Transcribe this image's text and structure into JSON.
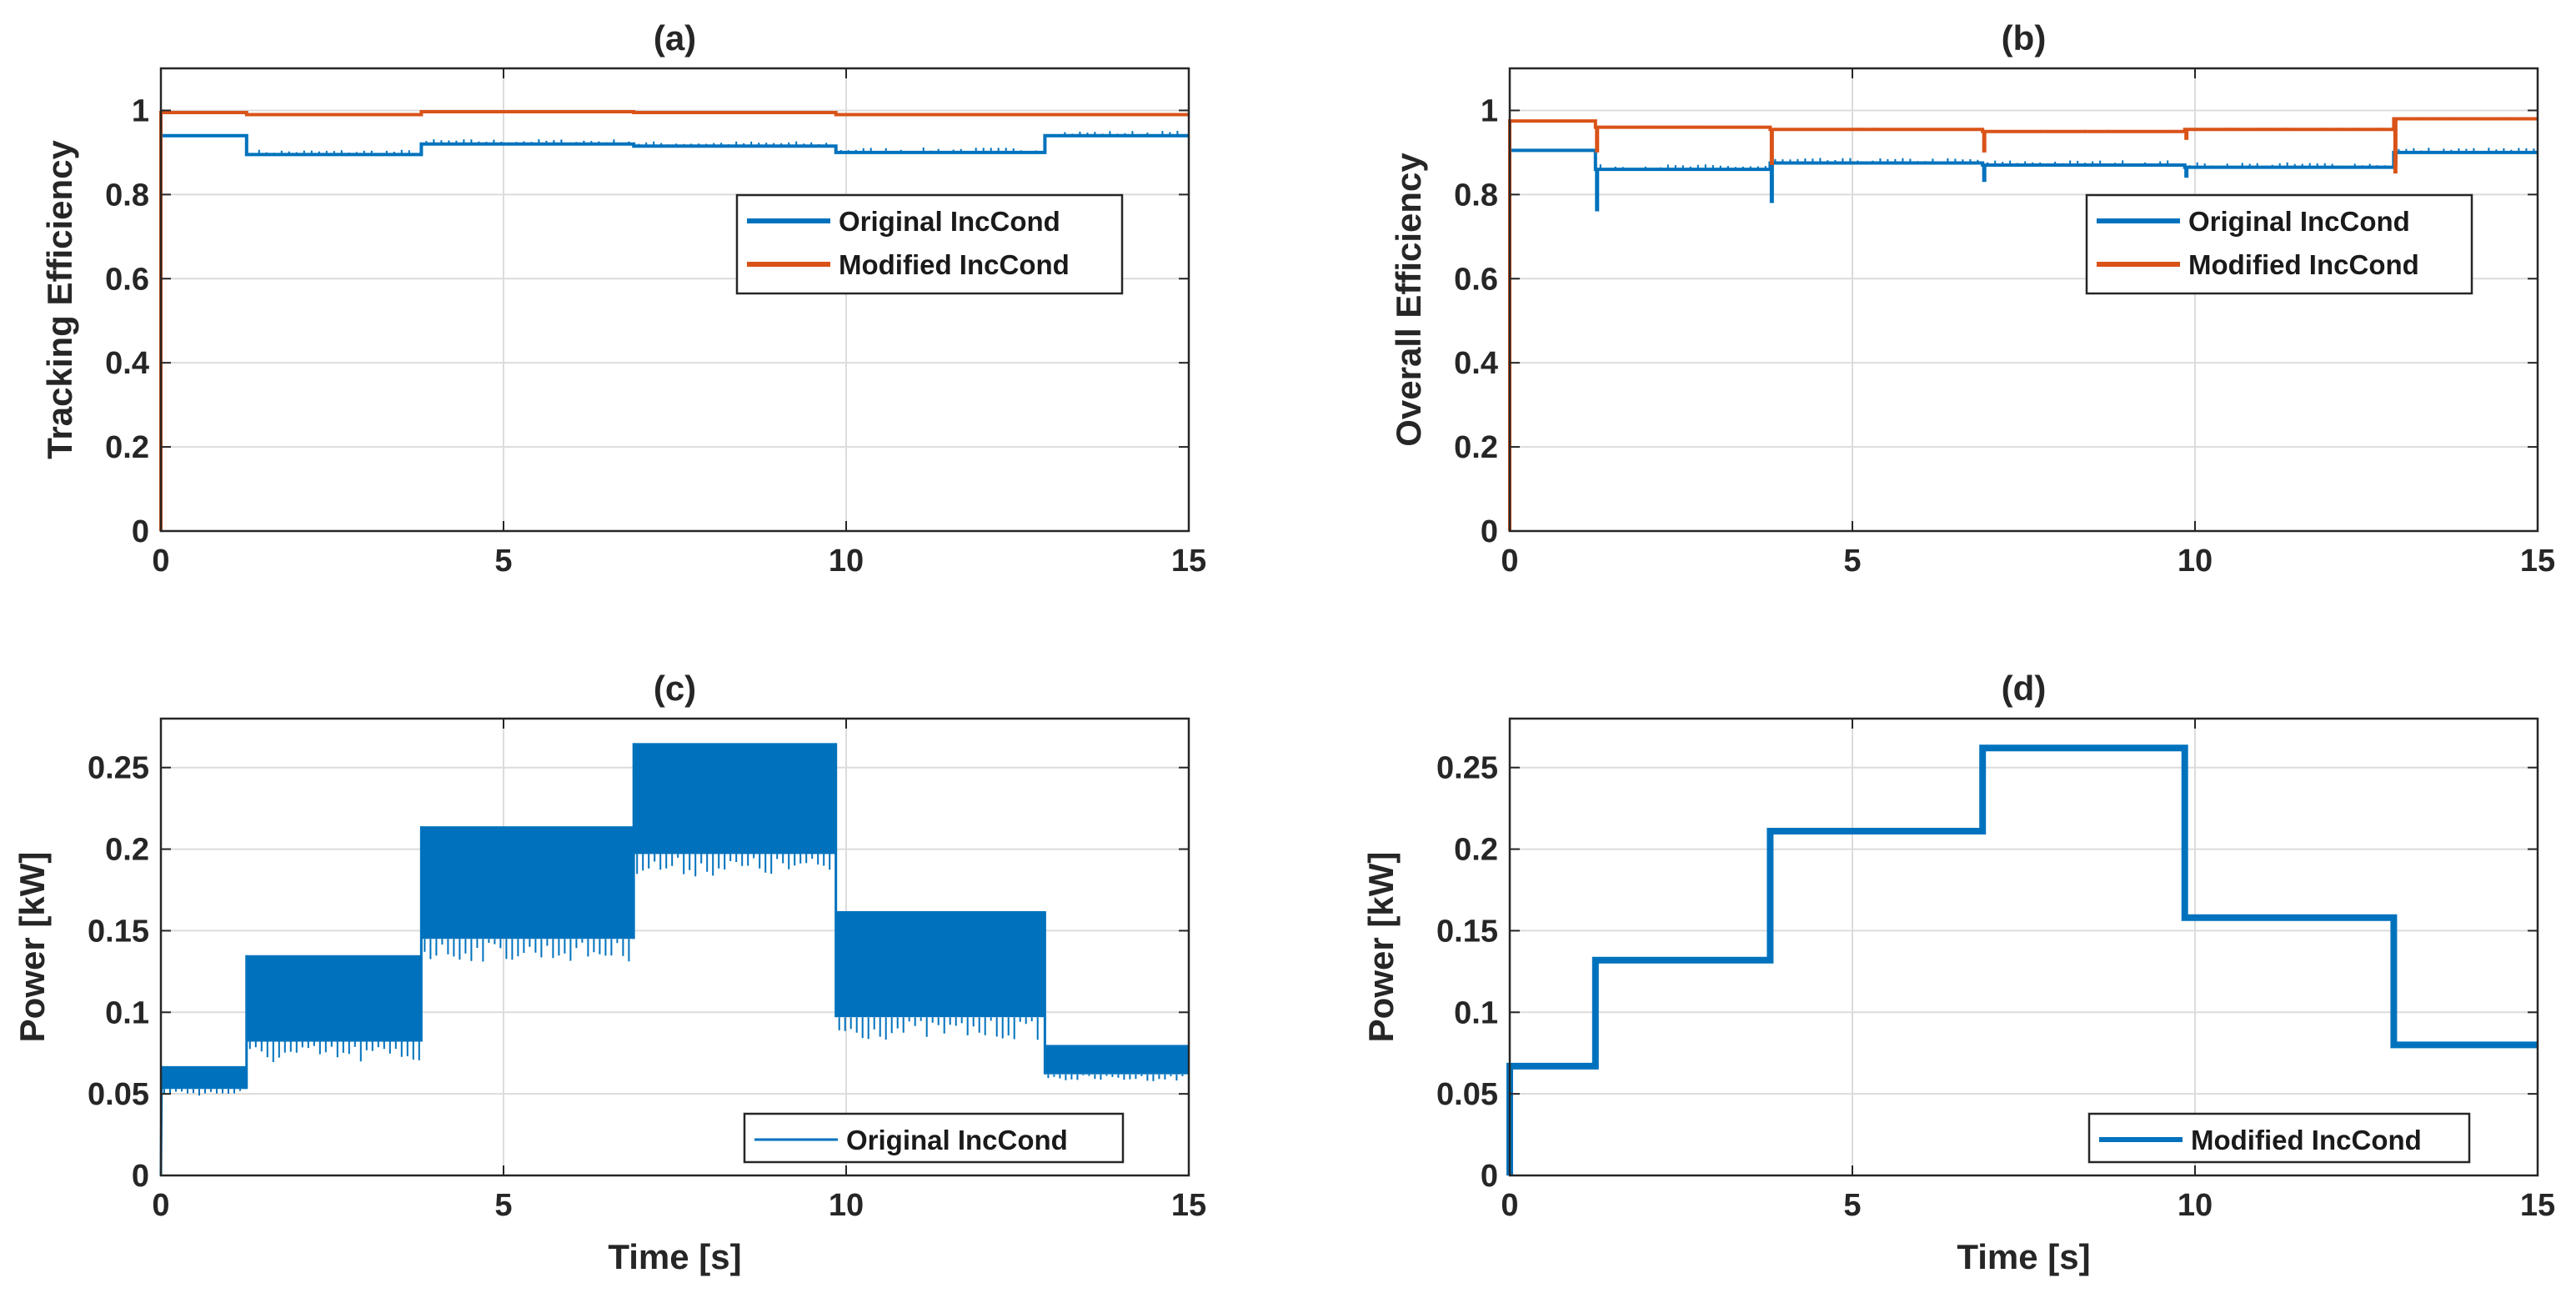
{
  "chart_data": [
    {
      "id": "a",
      "type": "line",
      "title": "(a)",
      "xlabel": "",
      "ylabel": "Tracking Efficiency",
      "xlim": [
        0,
        15
      ],
      "ylim": [
        0,
        1.1
      ],
      "xticks": [
        0,
        5,
        10,
        15
      ],
      "yticks": [
        0,
        0.2,
        0.4,
        0.6,
        0.8,
        1
      ],
      "xtick_labels": [
        "0",
        "5",
        "10",
        "15"
      ],
      "ytick_labels": [
        "0",
        "0.2",
        "0.4",
        "0.6",
        "0.8",
        "1"
      ],
      "grid": true,
      "legend_position": "center-right",
      "series": [
        {
          "name": "Original IncCond",
          "color": "#0072BD",
          "steps": [
            {
              "t0": 0,
              "t1": 1.25,
              "v": 0.94
            },
            {
              "t0": 1.25,
              "t1": 3.8,
              "v": 0.895
            },
            {
              "t0": 3.8,
              "t1": 6.9,
              "v": 0.92
            },
            {
              "t0": 6.9,
              "t1": 9.85,
              "v": 0.915
            },
            {
              "t0": 9.85,
              "t1": 12.9,
              "v": 0.9
            },
            {
              "t0": 12.9,
              "t1": 15,
              "v": 0.94
            }
          ]
        },
        {
          "name": "Modified IncCond",
          "color": "#D95319",
          "steps": [
            {
              "t0": 0,
              "t1": 1.25,
              "v": 0.995
            },
            {
              "t0": 1.25,
              "t1": 3.8,
              "v": 0.99
            },
            {
              "t0": 3.8,
              "t1": 6.9,
              "v": 0.997
            },
            {
              "t0": 6.9,
              "t1": 9.85,
              "v": 0.995
            },
            {
              "t0": 9.85,
              "t1": 12.9,
              "v": 0.99
            },
            {
              "t0": 12.9,
              "t1": 15,
              "v": 0.99
            }
          ]
        }
      ]
    },
    {
      "id": "b",
      "type": "line",
      "title": "(b)",
      "xlabel": "",
      "ylabel": "Overall Efficiency",
      "xlim": [
        0,
        15
      ],
      "ylim": [
        0,
        1.1
      ],
      "xticks": [
        0,
        5,
        10,
        15
      ],
      "yticks": [
        0,
        0.2,
        0.4,
        0.6,
        0.8,
        1
      ],
      "xtick_labels": [
        "0",
        "5",
        "10",
        "15"
      ],
      "ytick_labels": [
        "0",
        "0.2",
        "0.4",
        "0.6",
        "0.8",
        "1"
      ],
      "grid": true,
      "legend_position": "center-right",
      "series": [
        {
          "name": "Original IncCond",
          "color": "#0072BD",
          "steps": [
            {
              "t0": 0,
              "t1": 1.25,
              "v": 0.905
            },
            {
              "t0": 1.25,
              "t1": 3.8,
              "v": 0.86
            },
            {
              "t0": 3.8,
              "t1": 6.9,
              "v": 0.875
            },
            {
              "t0": 6.9,
              "t1": 9.85,
              "v": 0.87
            },
            {
              "t0": 9.85,
              "t1": 12.9,
              "v": 0.865
            },
            {
              "t0": 12.9,
              "t1": 15,
              "v": 0.9
            }
          ],
          "dips": [
            {
              "t": 1.25,
              "v": 0.76
            },
            {
              "t": 3.8,
              "v": 0.78
            },
            {
              "t": 6.9,
              "v": 0.83
            },
            {
              "t": 9.85,
              "v": 0.84
            },
            {
              "t": 12.9,
              "v": 0.87
            }
          ]
        },
        {
          "name": "Modified IncCond",
          "color": "#D95319",
          "steps": [
            {
              "t0": 0,
              "t1": 1.25,
              "v": 0.975
            },
            {
              "t0": 1.25,
              "t1": 3.8,
              "v": 0.96
            },
            {
              "t0": 3.8,
              "t1": 6.9,
              "v": 0.955
            },
            {
              "t0": 6.9,
              "t1": 9.85,
              "v": 0.95
            },
            {
              "t0": 9.85,
              "t1": 12.9,
              "v": 0.955
            },
            {
              "t0": 12.9,
              "t1": 15,
              "v": 0.98
            }
          ],
          "dips": [
            {
              "t": 1.25,
              "v": 0.9
            },
            {
              "t": 3.8,
              "v": 0.87
            },
            {
              "t": 6.9,
              "v": 0.9
            },
            {
              "t": 9.85,
              "v": 0.93
            },
            {
              "t": 12.9,
              "v": 0.85
            }
          ]
        }
      ]
    },
    {
      "id": "c",
      "type": "line",
      "title": "(c)",
      "xlabel": "Time [s]",
      "ylabel": "Power [kW]",
      "xlim": [
        0,
        15
      ],
      "ylim": [
        0,
        0.28
      ],
      "xticks": [
        0,
        5,
        10,
        15
      ],
      "yticks": [
        0,
        0.05,
        0.1,
        0.15,
        0.2,
        0.25
      ],
      "xtick_labels": [
        "0",
        "5",
        "10",
        "15"
      ],
      "ytick_labels": [
        "0",
        "0.05",
        "0.1",
        "0.15",
        "0.2",
        "0.25"
      ],
      "grid": true,
      "legend_position": "bottom-right",
      "series": [
        {
          "name": "Original IncCond",
          "color": "#0072BD",
          "bands": [
            {
              "t0": 0,
              "t1": 1.25,
              "low": 0.053,
              "high": 0.067
            },
            {
              "t0": 1.25,
              "t1": 3.8,
              "low": 0.082,
              "high": 0.135
            },
            {
              "t0": 3.8,
              "t1": 6.9,
              "low": 0.145,
              "high": 0.214
            },
            {
              "t0": 6.9,
              "t1": 9.85,
              "low": 0.197,
              "high": 0.265
            },
            {
              "t0": 9.85,
              "t1": 12.9,
              "low": 0.097,
              "high": 0.162
            },
            {
              "t0": 12.9,
              "t1": 15,
              "low": 0.062,
              "high": 0.08
            }
          ]
        }
      ]
    },
    {
      "id": "d",
      "type": "line",
      "title": "(d)",
      "xlabel": "Time [s]",
      "ylabel": "Power [kW]",
      "xlim": [
        0,
        15
      ],
      "ylim": [
        0,
        0.28
      ],
      "xticks": [
        0,
        5,
        10,
        15
      ],
      "yticks": [
        0,
        0.05,
        0.1,
        0.15,
        0.2,
        0.25
      ],
      "xtick_labels": [
        "0",
        "5",
        "10",
        "15"
      ],
      "ytick_labels": [
        "0",
        "0.05",
        "0.1",
        "0.15",
        "0.2",
        "0.25"
      ],
      "grid": true,
      "legend_position": "bottom-right",
      "series": [
        {
          "name": "Modified IncCond",
          "color": "#0072BD",
          "steps": [
            {
              "t0": 0,
              "t1": 1.25,
              "v": 0.067
            },
            {
              "t0": 1.25,
              "t1": 3.8,
              "v": 0.132
            },
            {
              "t0": 3.8,
              "t1": 6.9,
              "v": 0.211
            },
            {
              "t0": 6.9,
              "t1": 9.85,
              "v": 0.262
            },
            {
              "t0": 9.85,
              "t1": 12.9,
              "v": 0.158
            },
            {
              "t0": 12.9,
              "t1": 15,
              "v": 0.08
            }
          ]
        }
      ]
    }
  ]
}
